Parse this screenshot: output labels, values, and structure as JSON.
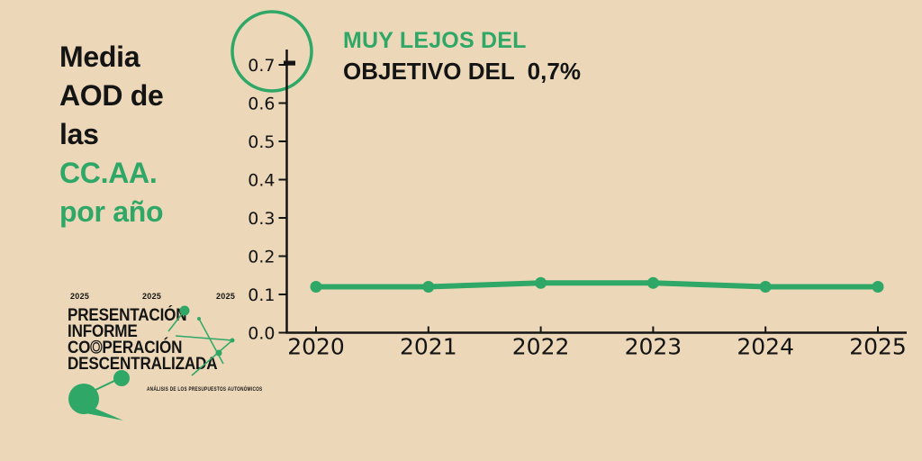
{
  "page": {
    "background_color": "#ecd8b9",
    "accent_green": "#2fa767",
    "text_black": "#141414"
  },
  "left_title": {
    "lines": [
      {
        "text": "Media",
        "color": "black"
      },
      {
        "text": "AOD de",
        "color": "black"
      },
      {
        "text": "las",
        "color": "black"
      },
      {
        "text": "CC.AA.",
        "color": "green"
      },
      {
        "text": "por año",
        "color": "green"
      }
    ]
  },
  "headline": {
    "line1": "MUY LEJOS DEL",
    "line2": "OBJETIVO DEL  0,7%"
  },
  "chart_data": {
    "type": "line",
    "title": "Media AOD de las CC.AA. por año",
    "categories": [
      "2020",
      "2021",
      "2022",
      "2023",
      "2024",
      "2025"
    ],
    "series": [
      {
        "name": "Media AOD de las CC.AA. (%)",
        "values": [
          0.12,
          0.12,
          0.13,
          0.13,
          0.12,
          0.12
        ]
      }
    ],
    "y_ticks": [
      "0.0",
      "0.1",
      "0.2",
      "0.3",
      "0.4",
      "0.5",
      "0.6",
      "0.7"
    ],
    "ylim": [
      0,
      0.75
    ],
    "xlabel": "",
    "ylabel": "",
    "grid": false,
    "legend": "none",
    "line_color": "#2fa767",
    "annotations": [
      {
        "text": "objetivo 0,7% destacado con círculo verde y marca en el eje",
        "value": 0.7
      }
    ]
  },
  "logo": {
    "years": [
      "2025",
      "2025",
      "2025"
    ],
    "line1": "PRESENTACIÓN",
    "line2": "INFORME",
    "line3_a": "CO",
    "line3_b": "O",
    "line3_c": "PERACIÓN",
    "line4": "DESCENTRALIZADA",
    "subtitle": "ANÁLISIS DE LOS PRESUPUESTOS AUTONÓMICOS"
  }
}
